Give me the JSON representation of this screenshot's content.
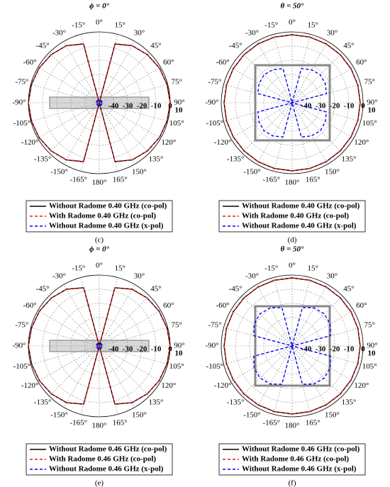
{
  "chart_data": [
    {
      "type": "polar",
      "title": "ϕ = 0°",
      "caption": "(c)",
      "theta": [
        -180,
        -165,
        -150,
        -135,
        -120,
        -105,
        -90,
        -75,
        -60,
        -45,
        -30,
        -15,
        0,
        15,
        30,
        45,
        60,
        75,
        90,
        105,
        120,
        135,
        150,
        165,
        180
      ],
      "thetaticks": [
        {
          "value": 0,
          "label": "0°"
        },
        {
          "value": 15,
          "label": "15°"
        },
        {
          "value": 30,
          "label": "30°"
        },
        {
          "value": 45,
          "label": "45°"
        },
        {
          "value": 60,
          "label": "60°"
        },
        {
          "value": 75,
          "label": "75°"
        },
        {
          "value": 90,
          "label": "90°"
        },
        {
          "value": 105,
          "label": "105°"
        },
        {
          "value": 120,
          "label": "120°"
        },
        {
          "value": 135,
          "label": "135°"
        },
        {
          "value": 150,
          "label": "150°"
        },
        {
          "value": 165,
          "label": "165°"
        },
        {
          "value": 180,
          "label": "180°"
        },
        {
          "value": -165,
          "label": "-165°"
        },
        {
          "value": -150,
          "label": "-150°"
        },
        {
          "value": -135,
          "label": "-135°"
        },
        {
          "value": -120,
          "label": "-120°"
        },
        {
          "value": -105,
          "label": "-105°"
        },
        {
          "value": -90,
          "label": "-90°"
        },
        {
          "value": -75,
          "label": "-75°"
        },
        {
          "value": -60,
          "label": "-60°"
        },
        {
          "value": -45,
          "label": "-45°"
        },
        {
          "value": -30,
          "label": "-30°"
        },
        {
          "value": -15,
          "label": "-15°"
        }
      ],
      "rlim": [
        -50,
        0
      ],
      "rticks": [
        -40,
        -30,
        -20,
        -10,
        0
      ],
      "annotations": [
        "10"
      ],
      "series": [
        {
          "name": "Without Radome 0.40 GHz (co-pol)",
          "color": "#000000",
          "dash": false,
          "values": [
            -50,
            -7,
            -3.5,
            -2,
            -1,
            -0.5,
            0,
            -0.5,
            -1,
            -2,
            -3.5,
            -7,
            -50,
            -7,
            -3.5,
            -2,
            -1,
            -0.5,
            0,
            -0.5,
            -1,
            -2,
            -3.5,
            -7,
            -50
          ]
        },
        {
          "name": "With Radome 0.40 GHz (co-pol)",
          "color": "#e41a1c",
          "dash": true,
          "values": [
            -50,
            -7.2,
            -3.6,
            -2,
            -1,
            -0.5,
            0,
            -0.5,
            -1,
            -2,
            -3.6,
            -7.2,
            -50,
            -7.2,
            -3.6,
            -2,
            -1,
            -0.5,
            0,
            -0.5,
            -1,
            -2,
            -3.6,
            -7.2,
            -50
          ]
        },
        {
          "name": "Without Radome 0.40 GHz (x-pol)",
          "color": "#0000ff",
          "dash": true,
          "values": [
            -48,
            -48,
            -48,
            -48,
            -48,
            -48,
            -48,
            -48,
            -48,
            -48,
            -48,
            -48,
            -48,
            -48,
            -48,
            -48,
            -48,
            -48,
            -48,
            -48,
            -48,
            -48,
            -48,
            -48,
            -48
          ]
        }
      ]
    },
    {
      "type": "polar",
      "title": "θ = 50°",
      "caption": "(d)",
      "theta": [
        -180,
        -165,
        -150,
        -135,
        -120,
        -105,
        -90,
        -75,
        -60,
        -45,
        -30,
        -15,
        0,
        15,
        30,
        45,
        60,
        75,
        90,
        105,
        120,
        135,
        150,
        165,
        180
      ],
      "thetaticks": [
        {
          "value": 0,
          "label": "0°"
        },
        {
          "value": 15,
          "label": "15°"
        },
        {
          "value": 30,
          "label": "30°"
        },
        {
          "value": 45,
          "label": "45°"
        },
        {
          "value": 60,
          "label": "60°"
        },
        {
          "value": 75,
          "label": "75°"
        },
        {
          "value": 90,
          "label": "90°"
        },
        {
          "value": 105,
          "label": "105°"
        },
        {
          "value": 120,
          "label": "120°"
        },
        {
          "value": 135,
          "label": "135°"
        },
        {
          "value": 150,
          "label": "150°"
        },
        {
          "value": 165,
          "label": "165°"
        },
        {
          "value": 180,
          "label": "180°"
        },
        {
          "value": -165,
          "label": "-165°"
        },
        {
          "value": -150,
          "label": "-150°"
        },
        {
          "value": -135,
          "label": "-135°"
        },
        {
          "value": -120,
          "label": "-120°"
        },
        {
          "value": -105,
          "label": "-105°"
        },
        {
          "value": -90,
          "label": "-90°"
        },
        {
          "value": -75,
          "label": "-75°"
        },
        {
          "value": -60,
          "label": "-60°"
        },
        {
          "value": -45,
          "label": "-45°"
        },
        {
          "value": -30,
          "label": "-30°"
        },
        {
          "value": -15,
          "label": "-15°"
        }
      ],
      "rlim": [
        -50,
        0
      ],
      "rticks": [
        -40,
        -30,
        -20,
        -10,
        0
      ],
      "annotations": [
        "10"
      ],
      "series": [
        {
          "name": "Without Radome 0.40 GHz (co-pol)",
          "color": "#000000",
          "dash": false,
          "values": [
            -2,
            -2,
            -2,
            -2,
            -2,
            -2,
            -2,
            -2,
            -2,
            -2,
            -2,
            -2,
            -2,
            -2,
            -2,
            -2,
            -2,
            -2,
            -2,
            -2,
            -2,
            -2,
            -2,
            -2,
            -2
          ]
        },
        {
          "name": "With Radome 0.40 GHz (co-pol)",
          "color": "#e41a1c",
          "dash": true,
          "values": [
            -2.1,
            -2.1,
            -2.1,
            -2.1,
            -2.1,
            -2.1,
            -2.1,
            -2.1,
            -2.1,
            -2.1,
            -2.1,
            -2.1,
            -2.1,
            -2.1,
            -2.1,
            -2.1,
            -2.1,
            -2.1,
            -2.1,
            -2.1,
            -2.1,
            -2.1,
            -2.1,
            -2.1,
            -2.1
          ]
        },
        {
          "name": "Without Radome 0.40 GHz (x-pol)",
          "color": "#0000ff",
          "dash": true,
          "values": [
            -50,
            -25,
            -23,
            -22,
            -23,
            -25,
            -50,
            -25,
            -23,
            -22,
            -23,
            -25,
            -50,
            -25,
            -23,
            -22,
            -23,
            -25,
            -50,
            -25,
            -23,
            -22,
            -23,
            -25,
            -50
          ]
        }
      ]
    },
    {
      "type": "polar",
      "title": "ϕ = 0°",
      "caption": "(e)",
      "theta": [
        -180,
        -165,
        -150,
        -135,
        -120,
        -105,
        -90,
        -75,
        -60,
        -45,
        -30,
        -15,
        0,
        15,
        30,
        45,
        60,
        75,
        90,
        105,
        120,
        135,
        150,
        165,
        180
      ],
      "thetaticks": [
        {
          "value": 0,
          "label": "0°"
        },
        {
          "value": 15,
          "label": "15°"
        },
        {
          "value": 30,
          "label": "30°"
        },
        {
          "value": 45,
          "label": "45°"
        },
        {
          "value": 60,
          "label": "60°"
        },
        {
          "value": 75,
          "label": "75°"
        },
        {
          "value": 90,
          "label": "90°"
        },
        {
          "value": 105,
          "label": "105°"
        },
        {
          "value": 120,
          "label": "120°"
        },
        {
          "value": 135,
          "label": "135°"
        },
        {
          "value": 150,
          "label": "150°"
        },
        {
          "value": 165,
          "label": "165°"
        },
        {
          "value": 180,
          "label": "180°"
        },
        {
          "value": -165,
          "label": "-165°"
        },
        {
          "value": -150,
          "label": "-150°"
        },
        {
          "value": -135,
          "label": "-135°"
        },
        {
          "value": -120,
          "label": "-120°"
        },
        {
          "value": -105,
          "label": "-105°"
        },
        {
          "value": -90,
          "label": "-90°"
        },
        {
          "value": -75,
          "label": "-75°"
        },
        {
          "value": -60,
          "label": "-60°"
        },
        {
          "value": -45,
          "label": "-45°"
        },
        {
          "value": -30,
          "label": "-30°"
        },
        {
          "value": -15,
          "label": "-15°"
        }
      ],
      "rlim": [
        -50,
        0
      ],
      "rticks": [
        -40,
        -30,
        -20,
        -10,
        0
      ],
      "annotations": [
        "10"
      ],
      "series": [
        {
          "name": "Without Radome 0.46 GHz (co-pol)",
          "color": "#000000",
          "dash": false,
          "values": [
            -50,
            -7.5,
            -3.8,
            -2.2,
            -1.2,
            -0.6,
            0,
            -0.6,
            -1.2,
            -2.2,
            -3.8,
            -7.5,
            -50,
            -7.5,
            -3.8,
            -2.2,
            -1.2,
            -0.6,
            0,
            -0.6,
            -1.2,
            -2.2,
            -3.8,
            -7.5,
            -50
          ]
        },
        {
          "name": "With Radome 0.46 GHz (co-pol)",
          "color": "#e41a1c",
          "dash": true,
          "values": [
            -50,
            -7.6,
            -3.9,
            -2.2,
            -1.2,
            -0.6,
            0,
            -0.6,
            -1.2,
            -2.2,
            -3.9,
            -7.6,
            -50,
            -7.6,
            -3.9,
            -2.2,
            -1.2,
            -0.6,
            0,
            -0.6,
            -1.2,
            -2.2,
            -3.9,
            -7.6,
            -50
          ]
        },
        {
          "name": "Without Radome 0.46 GHz (x-pol)",
          "color": "#0000ff",
          "dash": true,
          "values": [
            -48,
            -48,
            -48,
            -48,
            -48,
            -48,
            -48,
            -48,
            -48,
            -48,
            -48,
            -48,
            -48,
            -48,
            -48,
            -48,
            -48,
            -48,
            -48,
            -48,
            -48,
            -48,
            -48,
            -48,
            -48
          ]
        }
      ]
    },
    {
      "type": "polar",
      "title": "θ = 50°",
      "caption": "(f)",
      "theta": [
        -180,
        -165,
        -150,
        -135,
        -120,
        -105,
        -90,
        -75,
        -60,
        -45,
        -30,
        -15,
        0,
        15,
        30,
        45,
        60,
        75,
        90,
        105,
        120,
        135,
        150,
        165,
        180
      ],
      "thetaticks": [
        {
          "value": 0,
          "label": "0°"
        },
        {
          "value": 15,
          "label": "15°"
        },
        {
          "value": 30,
          "label": "30°"
        },
        {
          "value": 45,
          "label": "45°"
        },
        {
          "value": 60,
          "label": "60°"
        },
        {
          "value": 75,
          "label": "75°"
        },
        {
          "value": 90,
          "label": "90°"
        },
        {
          "value": 105,
          "label": "105°"
        },
        {
          "value": 120,
          "label": "120°"
        },
        {
          "value": 135,
          "label": "135°"
        },
        {
          "value": 150,
          "label": "150°"
        },
        {
          "value": 165,
          "label": "165°"
        },
        {
          "value": 180,
          "label": "180°"
        },
        {
          "value": -165,
          "label": "-165°"
        },
        {
          "value": -150,
          "label": "-150°"
        },
        {
          "value": -135,
          "label": "-135°"
        },
        {
          "value": -120,
          "label": "-120°"
        },
        {
          "value": -105,
          "label": "-105°"
        },
        {
          "value": -90,
          "label": "-90°"
        },
        {
          "value": -75,
          "label": "-75°"
        },
        {
          "value": -60,
          "label": "-60°"
        },
        {
          "value": -45,
          "label": "-45°"
        },
        {
          "value": -30,
          "label": "-30°"
        },
        {
          "value": -15,
          "label": "-15°"
        }
      ],
      "rlim": [
        -50,
        0
      ],
      "rticks": [
        -40,
        -30,
        -20,
        -10,
        0
      ],
      "annotations": [
        "10"
      ],
      "series": [
        {
          "name": "Without Radome 0.46 GHz (co-pol)",
          "color": "#000000",
          "dash": false,
          "values": [
            -2,
            -2,
            -2,
            -2,
            -2,
            -2,
            -2,
            -2,
            -2,
            -2,
            -2,
            -2,
            -2,
            -2,
            -2,
            -2,
            -2,
            -2,
            -2,
            -2,
            -2,
            -2,
            -2,
            -2,
            -2
          ]
        },
        {
          "name": "With Radome 0.46 GHz (co-pol)",
          "color": "#e41a1c",
          "dash": true,
          "values": [
            -2.1,
            -2.1,
            -2.1,
            -2.1,
            -2.1,
            -2.1,
            -2.1,
            -2.1,
            -2.1,
            -2.1,
            -2.1,
            -2.1,
            -2.1,
            -2.1,
            -2.1,
            -2.1,
            -2.1,
            -2.1,
            -2.1,
            -2.1,
            -2.1,
            -2.1,
            -2.1,
            -2.1,
            -2.1
          ]
        },
        {
          "name": "Without Radome 0.46 GHz (x-pol)",
          "color": "#0000ff",
          "dash": true,
          "values": [
            -50,
            -22,
            -19,
            -18,
            -19,
            -22,
            -50,
            -22,
            -19,
            -18,
            -19,
            -22,
            -50,
            -22,
            -19,
            -18,
            -19,
            -22,
            -50,
            -22,
            -19,
            -18,
            -19,
            -22,
            -50
          ]
        }
      ]
    }
  ]
}
